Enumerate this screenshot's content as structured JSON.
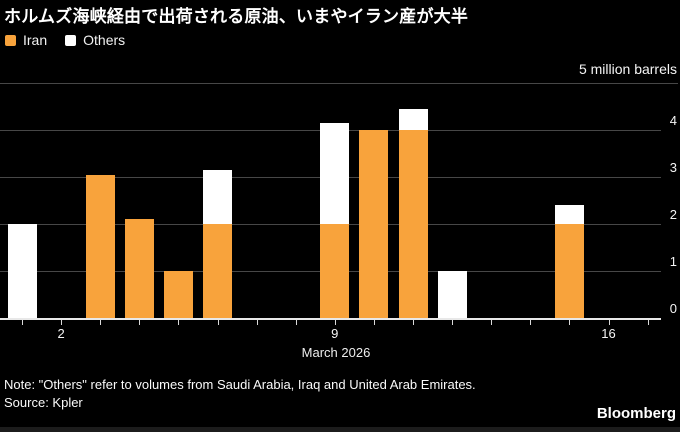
{
  "title": "ホルムズ海峡経由で出荷される原油、いまやイラン産が大半",
  "legend": {
    "items": [
      {
        "label": "Iran",
        "color": "#F8A33C"
      },
      {
        "label": "Others",
        "color": "#FFFFFF"
      }
    ]
  },
  "axis": {
    "unit_label": "5 million barrels",
    "y_tick_labels": [
      "4",
      "3",
      "2",
      "1",
      "0"
    ],
    "x_tick_labels": [
      {
        "label": "2",
        "day": 2
      },
      {
        "label": "9",
        "day": 9
      },
      {
        "label": "16",
        "day": 16
      }
    ],
    "x_axis_title": "March 2026"
  },
  "chart_data": {
    "type": "bar",
    "stacked": true,
    "title": "ホルムズ海峡経由で出荷される原油、いまやイラン産が大半",
    "unit": "million barrels",
    "x_axis": "Day of March 2026",
    "x": [
      1,
      2,
      3,
      4,
      5,
      6,
      7,
      8,
      9,
      10,
      11,
      12,
      13,
      14,
      15,
      16,
      17
    ],
    "series": [
      {
        "name": "Iran",
        "color": "#F8A33C",
        "values": [
          0,
          0,
          3.05,
          2.1,
          1.0,
          2.0,
          0,
          0,
          2.0,
          4.0,
          4.0,
          0,
          0,
          0,
          2.0,
          0,
          0
        ]
      },
      {
        "name": "Others",
        "color": "#FFFFFF",
        "values": [
          2.0,
          0,
          0,
          0,
          0,
          1.15,
          0,
          0,
          2.15,
          0,
          0.45,
          1.0,
          0,
          0,
          0.4,
          0,
          0
        ]
      }
    ],
    "ylim": [
      0,
      5
    ],
    "grid": true,
    "legend_position": "top-left"
  },
  "note": "Note: \"Others\" refer to volumes from Saudi Arabia, Iraq and United Arab Emirates.",
  "source": "Source: Kpler",
  "brand": "Bloomberg",
  "colors": {
    "background": "#000000",
    "iran": "#F8A33C",
    "others": "#FFFFFF",
    "gridline": "#474747",
    "axis_line": "#E8E8E8",
    "text": "#FFFFFF"
  }
}
